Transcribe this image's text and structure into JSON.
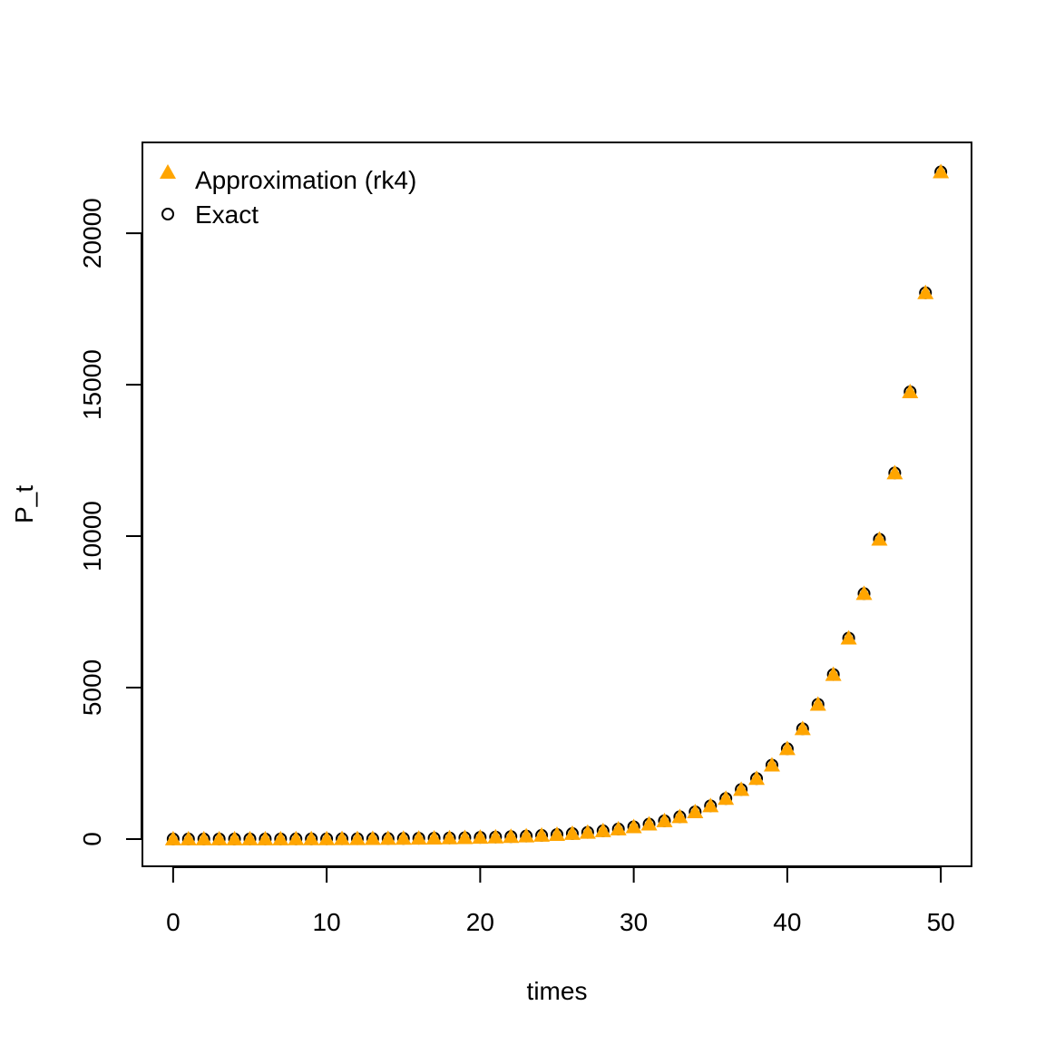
{
  "chart_data": {
    "type": "scatter",
    "title": "",
    "xlabel": "times",
    "ylabel": "P_t",
    "xlim": [
      -2,
      52
    ],
    "ylim": [
      -900,
      23000
    ],
    "x_ticks": [
      0,
      10,
      20,
      30,
      40,
      50
    ],
    "x_tick_labels": [
      "0",
      "10",
      "20",
      "30",
      "40",
      "50"
    ],
    "y_ticks": [
      0,
      5000,
      10000,
      15000,
      20000
    ],
    "y_tick_labels": [
      "0",
      "5000",
      "10000",
      "15000",
      "20000"
    ],
    "grid": false,
    "legend_position": "top-left",
    "series": [
      {
        "name": "Exact",
        "marker": "open-circle",
        "color": "#000000",
        "x": [
          0,
          1,
          2,
          3,
          4,
          5,
          6,
          7,
          8,
          9,
          10,
          11,
          12,
          13,
          14,
          15,
          16,
          17,
          18,
          19,
          20,
          21,
          22,
          23,
          24,
          25,
          26,
          27,
          28,
          29,
          30,
          31,
          32,
          33,
          34,
          35,
          36,
          37,
          38,
          39,
          40,
          41,
          42,
          43,
          44,
          45,
          46,
          47,
          48,
          49,
          50
        ],
        "y": [
          1,
          1,
          1,
          2,
          2,
          3,
          3,
          4,
          5,
          6,
          7,
          9,
          11,
          13,
          16,
          20,
          25,
          30,
          37,
          45,
          55,
          67,
          81,
          99,
          121,
          148,
          181,
          221,
          270,
          330,
          403,
          492,
          601,
          735,
          898,
          1097,
          1339,
          1636,
          1998,
          2441,
          2981,
          3641,
          4447,
          5432,
          6634,
          8103,
          9897,
          12088,
          14765,
          18034,
          22026
        ]
      },
      {
        "name": "Approximation (rk4)",
        "marker": "filled-triangle",
        "color": "#FFA500",
        "x": [
          0,
          1,
          2,
          3,
          4,
          5,
          6,
          7,
          8,
          9,
          10,
          11,
          12,
          13,
          14,
          15,
          16,
          17,
          18,
          19,
          20,
          21,
          22,
          23,
          24,
          25,
          26,
          27,
          28,
          29,
          30,
          31,
          32,
          33,
          34,
          35,
          36,
          37,
          38,
          39,
          40,
          41,
          42,
          43,
          44,
          45,
          46,
          47,
          48,
          49,
          50
        ],
        "y": [
          1,
          1,
          1,
          2,
          2,
          3,
          3,
          4,
          5,
          6,
          7,
          9,
          11,
          13,
          16,
          20,
          25,
          30,
          37,
          45,
          55,
          67,
          81,
          99,
          121,
          148,
          181,
          221,
          270,
          330,
          403,
          492,
          601,
          735,
          898,
          1097,
          1339,
          1636,
          1998,
          2441,
          2981,
          3641,
          4447,
          5432,
          6634,
          8103,
          9897,
          12088,
          14765,
          18034,
          22026
        ]
      }
    ],
    "legend": [
      {
        "label": "Approximation (rk4)",
        "marker": "filled-triangle",
        "color": "#FFA500"
      },
      {
        "label": "Exact",
        "marker": "open-circle",
        "color": "#000000"
      }
    ]
  }
}
